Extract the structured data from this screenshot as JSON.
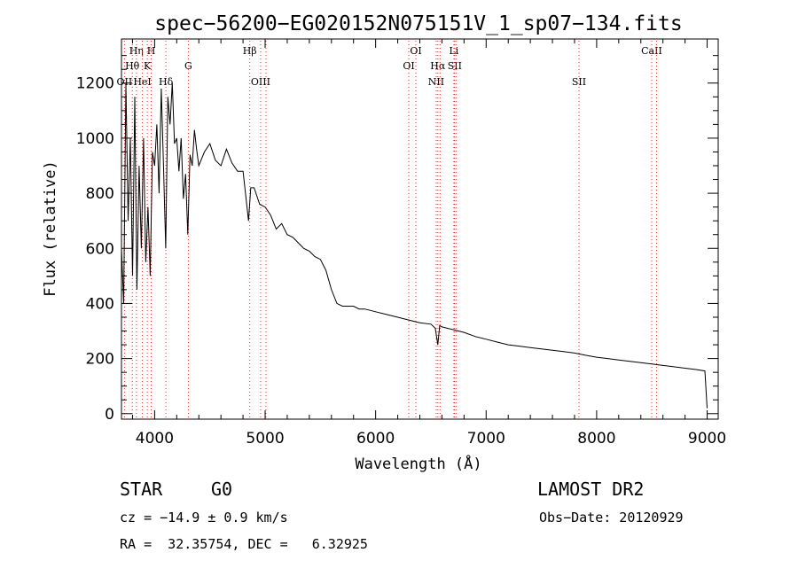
{
  "chart_data": {
    "type": "line",
    "title": "spec−56200−EG020152N075151V_1_sp07−134.fits",
    "xlabel": "Wavelength (Å)",
    "ylabel": "Flux (relative)",
    "xlim": [
      3700,
      9100
    ],
    "ylim": [
      -20,
      1360
    ],
    "x_ticks": [
      4000,
      5000,
      6000,
      7000,
      8000,
      9000
    ],
    "y_ticks": [
      0,
      200,
      400,
      600,
      800,
      1000,
      1200
    ],
    "grid": false,
    "line_color": "#000000",
    "marker_line_color": "#cc3333",
    "lines": [
      {
        "label": "OII",
        "wavelength": 3727,
        "row": 3
      },
      {
        "label": "Hθ",
        "wavelength": 3798,
        "row": 2
      },
      {
        "label": "Hη",
        "wavelength": 3835,
        "row": 1
      },
      {
        "label": "HeI",
        "wavelength": 3889,
        "row": 3
      },
      {
        "label": "K",
        "wavelength": 3934,
        "row": 2
      },
      {
        "label": "H",
        "wavelength": 3969,
        "row": 1
      },
      {
        "label": "Hδ",
        "wavelength": 4102,
        "row": 3
      },
      {
        "label": "G",
        "wavelength": 4305,
        "row": 2
      },
      {
        "label": "Hβ",
        "wavelength": 4861,
        "row": 1
      },
      {
        "label": "OIII",
        "wavelength": 4959,
        "row": 3
      },
      {
        "label": "OIII",
        "wavelength": 5007,
        "row": 3
      },
      {
        "label": "OI",
        "wavelength": 6300,
        "row": 2
      },
      {
        "label": "OI",
        "wavelength": 6364,
        "row": 1
      },
      {
        "label": "NII",
        "wavelength": 6548,
        "row": 3
      },
      {
        "label": "Hα",
        "wavelength": 6563,
        "row": 2
      },
      {
        "label": "NII",
        "wavelength": 6583,
        "row": 3
      },
      {
        "label": "Li",
        "wavelength": 6708,
        "row": 1
      },
      {
        "label": "SII",
        "wavelength": 6716,
        "row": 2
      },
      {
        "label": "SII",
        "wavelength": 6731,
        "row": 2
      },
      {
        "label": "SII",
        "wavelength": 7840,
        "row": 3
      },
      {
        "label": "CaII",
        "wavelength": 8498,
        "row": 1
      },
      {
        "label": "CaII",
        "wavelength": 8542,
        "row": 1
      }
    ],
    "series": [
      {
        "x": [
          3700,
          3720,
          3740,
          3760,
          3780,
          3800,
          3820,
          3840,
          3860,
          3880,
          3900,
          3920,
          3940,
          3960,
          3980,
          4000,
          4020,
          4040,
          4060,
          4080,
          4100,
          4120,
          4140,
          4160,
          4180,
          4200,
          4220,
          4240,
          4260,
          4280,
          4300,
          4320,
          4340,
          4360,
          4380,
          4400,
          4450,
          4500,
          4550,
          4600,
          4650,
          4700,
          4750,
          4800,
          4850,
          4870,
          4900,
          4950,
          5000,
          5050,
          5100,
          5150,
          5200,
          5250,
          5300,
          5350,
          5400,
          5450,
          5500,
          5550,
          5600,
          5650,
          5700,
          5750,
          5800,
          5850,
          5900,
          5950,
          6000,
          6100,
          6200,
          6300,
          6400,
          6500,
          6540,
          6563,
          6580,
          6600,
          6700,
          6800,
          6900,
          7000,
          7100,
          7200,
          7300,
          7400,
          7500,
          7600,
          7700,
          7800,
          7900,
          8000,
          8100,
          8200,
          8300,
          8400,
          8500,
          8600,
          8700,
          8800,
          8900,
          8980,
          9000
        ],
        "y": [
          600,
          400,
          1200,
          700,
          1000,
          500,
          1150,
          450,
          900,
          600,
          1000,
          550,
          750,
          500,
          950,
          900,
          1050,
          800,
          1180,
          900,
          600,
          1150,
          1050,
          1200,
          980,
          1000,
          880,
          1000,
          780,
          870,
          650,
          940,
          900,
          1030,
          960,
          900,
          950,
          980,
          920,
          900,
          960,
          910,
          880,
          880,
          700,
          820,
          820,
          760,
          750,
          720,
          670,
          690,
          650,
          640,
          620,
          600,
          590,
          570,
          560,
          520,
          450,
          400,
          390,
          390,
          390,
          380,
          380,
          375,
          370,
          360,
          350,
          340,
          330,
          325,
          310,
          250,
          320,
          315,
          305,
          295,
          280,
          270,
          260,
          250,
          245,
          240,
          235,
          230,
          225,
          220,
          212,
          205,
          200,
          195,
          190,
          185,
          180,
          175,
          170,
          165,
          160,
          155,
          20
        ]
      }
    ]
  },
  "info": {
    "object_class": "STAR",
    "subclass": "G0",
    "survey": "LAMOST DR2",
    "redshift_text": "cz = −14.9 ± 0.9 km/s",
    "obs_date": "Obs−Date: 20120929",
    "coordinates": "RA =  32.35754, DEC =   6.32925"
  }
}
